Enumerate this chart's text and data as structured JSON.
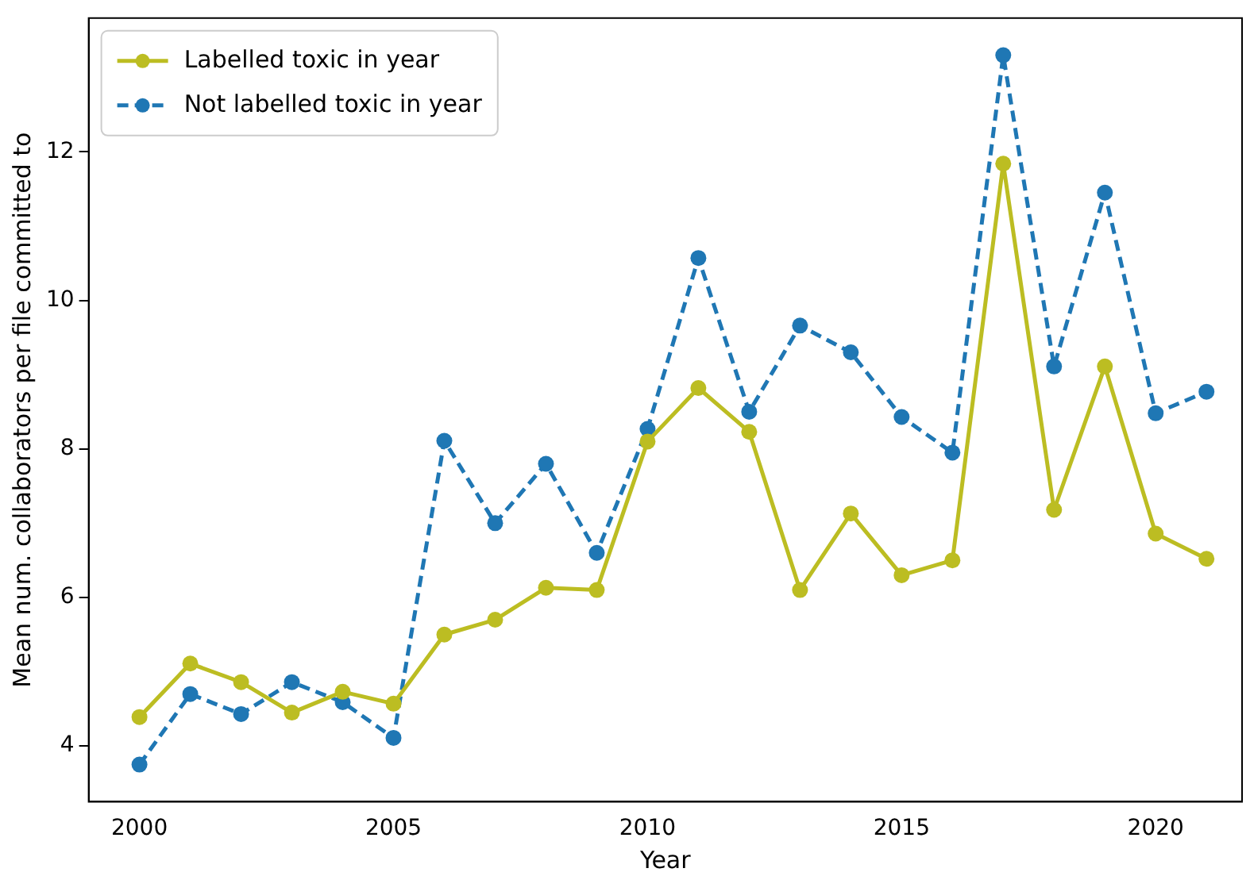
{
  "chart_data": {
    "type": "line",
    "xlabel": "Year",
    "ylabel": "Mean num. collaborators per file committed to",
    "x": [
      2000,
      2001,
      2002,
      2003,
      2004,
      2005,
      2006,
      2007,
      2008,
      2009,
      2010,
      2011,
      2012,
      2013,
      2014,
      2015,
      2016,
      2017,
      2018,
      2019,
      2020,
      2021
    ],
    "series": [
      {
        "name": "Labelled toxic in year",
        "color": "#bcbd22",
        "line_style": "solid",
        "values": [
          4.39,
          5.11,
          4.86,
          4.45,
          4.73,
          4.57,
          5.5,
          5.7,
          6.13,
          6.1,
          8.1,
          8.82,
          8.23,
          6.1,
          7.13,
          6.3,
          6.5,
          11.84,
          7.18,
          9.11,
          6.86,
          6.52
        ]
      },
      {
        "name": "Not labelled toxic in year",
        "color": "#1f77b4",
        "line_style": "dashed",
        "values": [
          3.75,
          4.7,
          4.43,
          4.86,
          4.59,
          4.11,
          8.11,
          7.0,
          7.8,
          6.6,
          8.27,
          10.57,
          8.5,
          9.66,
          9.3,
          8.43,
          7.95,
          13.3,
          9.11,
          11.45,
          8.48,
          8.77
        ]
      }
    ],
    "xlim": [
      1999,
      2021.7
    ],
    "xticks": [
      2000,
      2005,
      2010,
      2015,
      2020
    ],
    "ylim": [
      3.25,
      13.8
    ],
    "yticks": [
      4,
      6,
      8,
      10,
      12
    ],
    "grid": false,
    "legend": "top left",
    "marker": "circle"
  }
}
